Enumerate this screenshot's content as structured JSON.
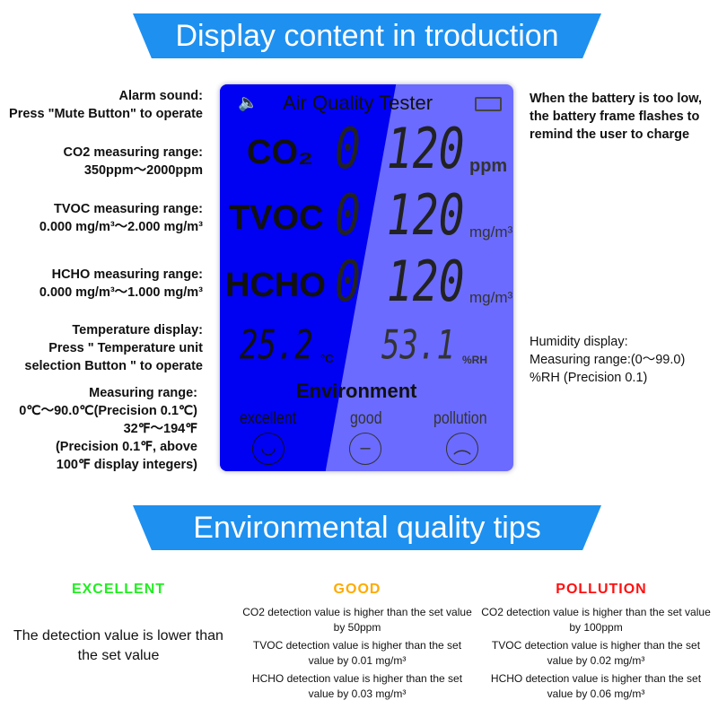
{
  "banner1": "Display content in troduction",
  "banner2": "Environmental quality tips",
  "left_annotations": [
    [
      "Alarm sound:",
      "Press \"Mute Button\" to operate"
    ],
    [
      "CO2 measuring range:",
      "350ppm～2000ppm"
    ],
    [
      "TVOC measuring range:",
      "0.000 mg/m³～2.000 mg/m³"
    ],
    [
      "HCHO measuring range:",
      "0.000 mg/m³～1.000 mg/m³"
    ],
    [
      "Temperature display:",
      "Press \" Temperature unit",
      "selection Button \" to operate"
    ],
    [
      "Measuring range:",
      "0℃～90.0℃(Precision 0.1℃)",
      "32℉～194℉",
      "(Precision 0.1℉, above",
      "100℉ display integers)"
    ]
  ],
  "right_annotations": [
    [
      "When the battery is too low,",
      "the battery frame flashes to",
      "remind the user to charge"
    ],
    [
      "Humidity display:",
      "Measuring range:(0～99.0)",
      "%RH (Precision 0.1)"
    ]
  ],
  "lcd": {
    "title": "Air Quality Tester",
    "co2_label": "CO₂",
    "co2_value": "0 120",
    "co2_unit": "ppm",
    "tvoc_label": "TVOC",
    "tvoc_value": "0 120",
    "tvoc_unit": "mg/m³",
    "hcho_label": "HCHO",
    "hcho_value": "0 120",
    "hcho_unit": "mg/m³",
    "temp": "25.2",
    "temp_unit": "°C",
    "hum": "53.1",
    "hum_unit": "%RH",
    "env": "Environment",
    "levels": [
      "excellent",
      "good",
      "pollution"
    ],
    "colors": {
      "backlight": "#0000f2",
      "panel": "#6b6bff"
    }
  },
  "tips": {
    "excellent": {
      "title": "EXCELLENT",
      "color": "#22ee22",
      "text": "The detection value is lower than the set value"
    },
    "good": {
      "title": "GOOD",
      "color": "#ffaa00",
      "items": [
        "CO2 detection value is higher than the set value by 50ppm",
        "TVOC detection value is higher than the set value by 0.01 mg/m³",
        "HCHO detection value is higher than the set value by 0.03 mg/m³"
      ]
    },
    "pollution": {
      "title": "POLLUTION",
      "color": "#ff1010",
      "items": [
        "CO2 detection value is higher than the set value by 100ppm",
        "TVOC detection value is higher than the set value by 0.02 mg/m³",
        "HCHO detection value is higher than the set value by 0.06 mg/m³"
      ]
    }
  }
}
